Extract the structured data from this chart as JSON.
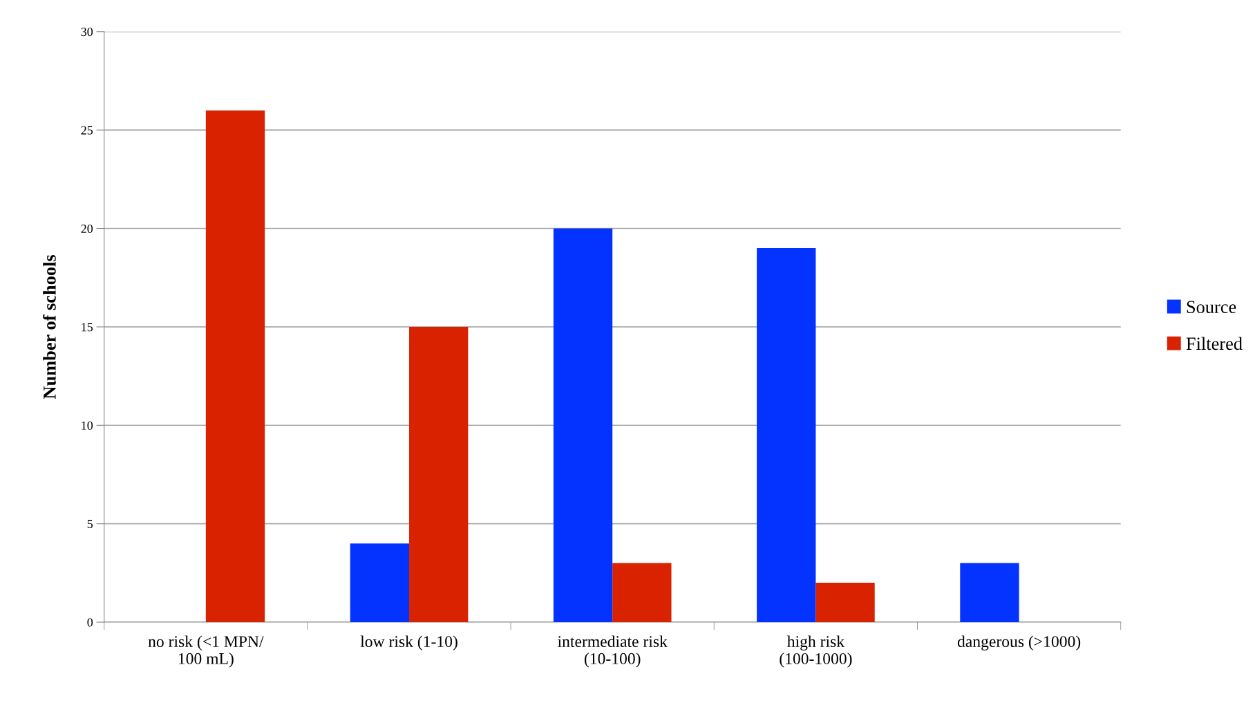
{
  "chart_data": {
    "type": "bar",
    "ylabel": "Number of schools",
    "categories": [
      "no risk (<1 MPN/\n100 mL)",
      "low risk (1-10)",
      "intermediate risk\n(10-100)",
      "high risk\n(100-1000)",
      "dangerous (>1000)"
    ],
    "series": [
      {
        "name": "Source",
        "color": "#0433ff",
        "values": [
          0,
          4,
          20,
          19,
          3
        ]
      },
      {
        "name": "Filtered",
        "color": "#d82200",
        "values": [
          26,
          15,
          3,
          2,
          0
        ]
      }
    ],
    "ylim": [
      0,
      30
    ],
    "yticks": [
      0,
      5,
      10,
      15,
      20,
      25,
      30
    ],
    "grid": "y",
    "legend": "right"
  }
}
